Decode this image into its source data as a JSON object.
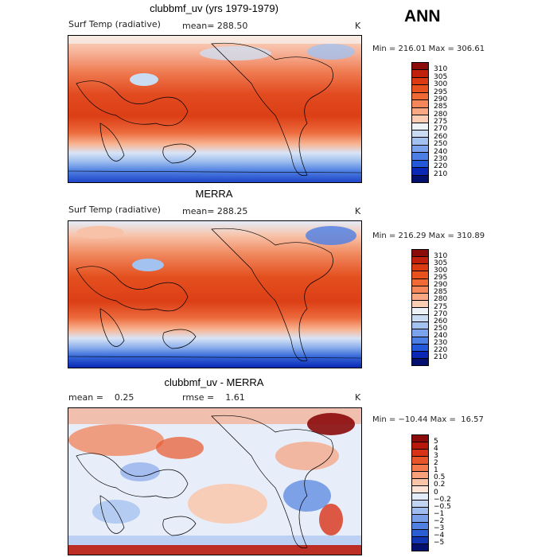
{
  "season": "ANN",
  "panels": [
    {
      "title": "clubbmf_uv (yrs 1979-1979)",
      "left_label": "Surf Temp (radiative)",
      "mean_label": "mean= 288.50",
      "unit": "K",
      "minmax": "Min = 216.01 Max = 306.61",
      "colorbar_levels": [
        "310",
        "305",
        "300",
        "295",
        "290",
        "285",
        "280",
        "275",
        "270",
        "260",
        "250",
        "240",
        "230",
        "220",
        "210"
      ],
      "colorbar_colors": [
        "#8b0a0a",
        "#c0200c",
        "#dc3a13",
        "#e8521e",
        "#f06a35",
        "#f5875a",
        "#f8a883",
        "#fbcdb5",
        "#eef2f9",
        "#c9dcf2",
        "#a3c2ef",
        "#7aa3ec",
        "#4c7ee5",
        "#2358d9",
        "#0a28b5",
        "#04106e"
      ]
    },
    {
      "title": "MERRA",
      "left_label": "Surf Temp (radiative)",
      "mean_label": "mean= 288.25",
      "unit": "K",
      "minmax": "Min = 216.29 Max = 310.89",
      "colorbar_levels": [
        "310",
        "305",
        "300",
        "295",
        "290",
        "285",
        "280",
        "275",
        "270",
        "260",
        "250",
        "240",
        "230",
        "220",
        "210"
      ],
      "colorbar_colors": [
        "#8b0a0a",
        "#c0200c",
        "#dc3a13",
        "#e8521e",
        "#f06a35",
        "#f5875a",
        "#f8a883",
        "#fbcdb5",
        "#eef2f9",
        "#c9dcf2",
        "#a3c2ef",
        "#7aa3ec",
        "#4c7ee5",
        "#2358d9",
        "#0a28b5",
        "#04106e"
      ]
    },
    {
      "title": "clubbmf_uv - MERRA",
      "left_label": "mean =    0.25",
      "mean_label": "rmse =    1.61",
      "unit": "K",
      "minmax": "Min = −10.44 Max =  16.57",
      "colorbar_levels": [
        "5",
        "4",
        "3",
        "2",
        "1",
        "0.5",
        "0.2",
        "0",
        "−0.2",
        "−0.5",
        "−1",
        "−2",
        "−3",
        "−4",
        "−5"
      ],
      "colorbar_colors": [
        "#8b0a0a",
        "#b8180c",
        "#d83218",
        "#e8552b",
        "#f27a4d",
        "#f6a07c",
        "#fac4a8",
        "#fde3d6",
        "#e3ecf9",
        "#c2d6f3",
        "#9ebdee",
        "#789fe8",
        "#5080e0",
        "#2a5cd4",
        "#0f34b4",
        "#04106e"
      ]
    }
  ]
}
